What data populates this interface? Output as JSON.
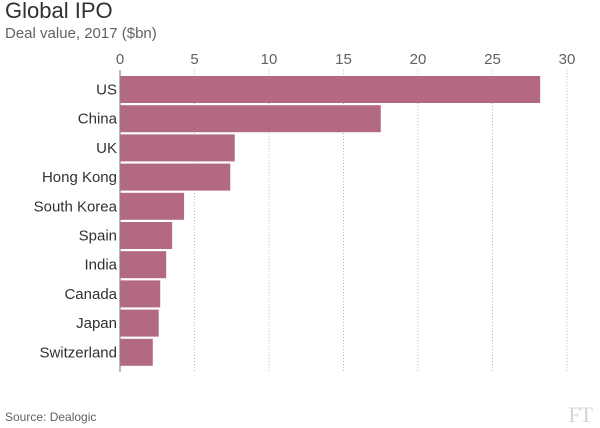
{
  "title": "Global IPO",
  "subtitle": "Deal value, 2017 ($bn)",
  "source": "Source: Dealogic",
  "logo": "FT",
  "colors": {
    "bar": "#b36a80",
    "grid": "#bdb7b1",
    "axis": "#8c8580",
    "text": "#33302e"
  },
  "chart_data": {
    "type": "bar",
    "orientation": "horizontal",
    "title": "Global IPO",
    "subtitle": "Deal value, 2017 ($bn)",
    "categories": [
      "US",
      "China",
      "UK",
      "Hong Kong",
      "South Korea",
      "Spain",
      "India",
      "Canada",
      "Japan",
      "Switzerland"
    ],
    "values": [
      28.2,
      17.5,
      7.7,
      7.4,
      4.3,
      3.5,
      3.1,
      2.7,
      2.6,
      2.2
    ],
    "xlim": [
      0,
      30
    ],
    "xticks": [
      0,
      5,
      10,
      15,
      20,
      25,
      30
    ],
    "grid": true
  }
}
